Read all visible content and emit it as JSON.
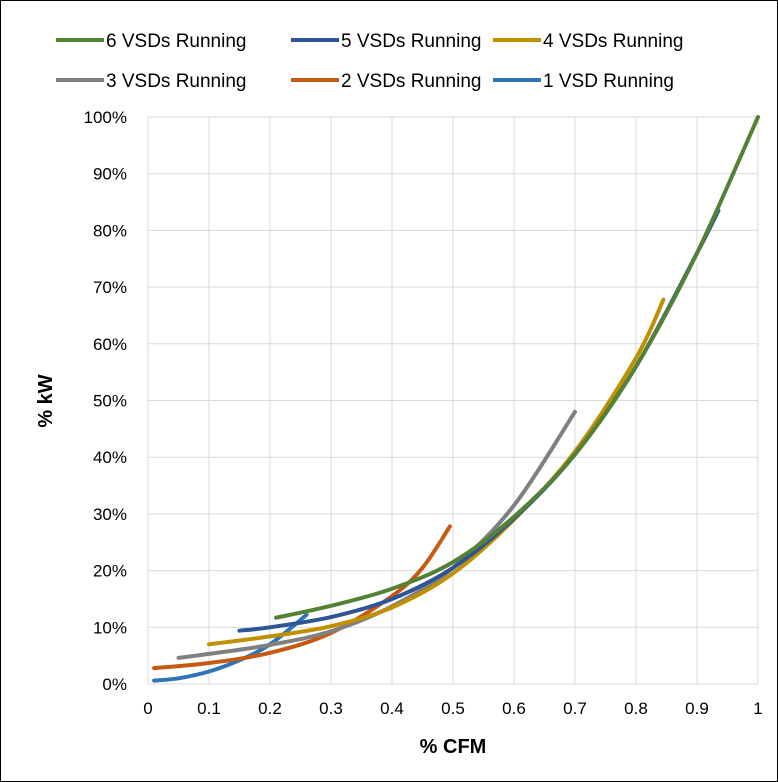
{
  "chart_data": {
    "type": "line",
    "title": "",
    "xlabel": "% CFM",
    "ylabel": "% kW",
    "xlim": [
      0,
      1
    ],
    "ylim": [
      0,
      1
    ],
    "x_ticks": [
      "0",
      "0.1",
      "0.2",
      "0.3",
      "0.4",
      "0.5",
      "0.6",
      "0.7",
      "0.8",
      "0.9",
      "1"
    ],
    "y_ticks": [
      "0%",
      "10%",
      "20%",
      "30%",
      "40%",
      "50%",
      "60%",
      "70%",
      "80%",
      "90%",
      "100%"
    ],
    "grid": true,
    "legend_position": "top",
    "series": [
      {
        "name": "6 VSDs Running",
        "color": "#548235",
        "points": [
          [
            0.21,
            0.117
          ],
          [
            0.3,
            0.138
          ],
          [
            0.4,
            0.168
          ],
          [
            0.5,
            0.215
          ],
          [
            0.6,
            0.295
          ],
          [
            0.7,
            0.405
          ],
          [
            0.8,
            0.56
          ],
          [
            0.9,
            0.76
          ],
          [
            1.0,
            1.0
          ]
        ]
      },
      {
        "name": "5 VSDs Running",
        "color": "#2F5597",
        "points": [
          [
            0.15,
            0.094
          ],
          [
            0.2,
            0.1
          ],
          [
            0.3,
            0.118
          ],
          [
            0.4,
            0.15
          ],
          [
            0.5,
            0.205
          ],
          [
            0.6,
            0.292
          ],
          [
            0.7,
            0.405
          ],
          [
            0.8,
            0.56
          ],
          [
            0.9,
            0.76
          ],
          [
            0.935,
            0.835
          ]
        ]
      },
      {
        "name": "4 VSDs Running",
        "color": "#BF9000",
        "points": [
          [
            0.1,
            0.07
          ],
          [
            0.2,
            0.084
          ],
          [
            0.3,
            0.102
          ],
          [
            0.4,
            0.135
          ],
          [
            0.5,
            0.195
          ],
          [
            0.6,
            0.29
          ],
          [
            0.7,
            0.41
          ],
          [
            0.8,
            0.575
          ],
          [
            0.845,
            0.678
          ]
        ]
      },
      {
        "name": "3 VSDs Running",
        "color": "#808080",
        "points": [
          [
            0.05,
            0.046
          ],
          [
            0.1,
            0.053
          ],
          [
            0.2,
            0.069
          ],
          [
            0.3,
            0.093
          ],
          [
            0.4,
            0.137
          ],
          [
            0.5,
            0.205
          ],
          [
            0.6,
            0.315
          ],
          [
            0.7,
            0.48
          ]
        ]
      },
      {
        "name": "2 VSDs Running",
        "color": "#C55A11",
        "points": [
          [
            0.01,
            0.028
          ],
          [
            0.1,
            0.037
          ],
          [
            0.2,
            0.055
          ],
          [
            0.3,
            0.09
          ],
          [
            0.4,
            0.155
          ],
          [
            0.45,
            0.205
          ],
          [
            0.495,
            0.278
          ]
        ]
      },
      {
        "name": "1 VSD Running",
        "color": "#2E75B6",
        "points": [
          [
            0.01,
            0.006
          ],
          [
            0.05,
            0.01
          ],
          [
            0.1,
            0.022
          ],
          [
            0.15,
            0.042
          ],
          [
            0.2,
            0.07
          ],
          [
            0.26,
            0.122
          ]
        ]
      }
    ]
  }
}
